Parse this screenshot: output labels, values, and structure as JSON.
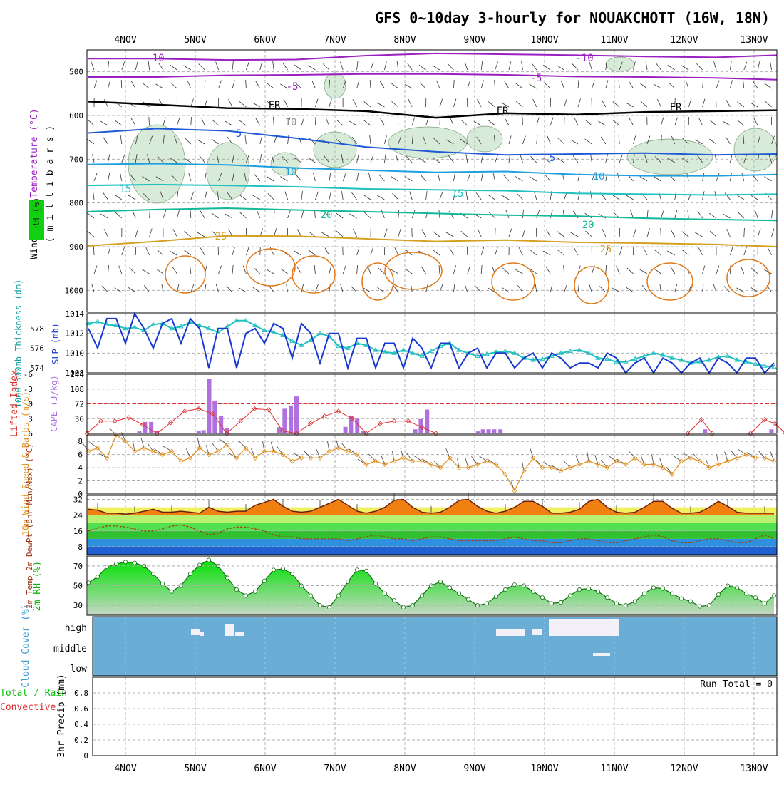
{
  "title": "GFS 0~10day 3-hourly for NOUAKCHOTT (16W, 18N)",
  "dates": [
    "4NOV",
    "5NOV",
    "6NOV",
    "7NOV",
    "8NOV",
    "9NOV",
    "10NOV",
    "11NOV",
    "12NOV",
    "13NOV"
  ],
  "colors": {
    "purple": "#9a1fc0",
    "black": "#000000",
    "blue": "#1e5ad6",
    "skyblue": "#1ea0e0",
    "cyan": "#1ec0c0",
    "teal": "#12b898",
    "gold": "#d4a020",
    "orange": "#e07818",
    "red": "#e03030",
    "cape": "#b070e0",
    "green": "#10d010",
    "cloud": "#6aaed6"
  },
  "chart_data": [
    {
      "type": "line",
      "panel": "upper-air",
      "ylabel_parts": [
        "RH (%)",
        "Temperature (°C)",
        "Wind (m/s)"
      ],
      "ylabel_right": "( m i l l i b a r s )",
      "y_ticks": [
        "500",
        "600",
        "700",
        "800",
        "900",
        "1000"
      ],
      "ylim": [
        450,
        1050
      ],
      "grid": true,
      "contour_labels": [
        "-10",
        "-10",
        "-5",
        "-5",
        "FR",
        "FR",
        "FR",
        "10",
        "5",
        "5",
        "10",
        "10",
        "15",
        "15",
        "20",
        "20",
        "25",
        "25"
      ],
      "series": [
        {
          "label": "-10",
          "days": [
            0,
            1,
            2,
            3,
            4,
            5,
            6,
            7,
            8,
            9,
            10
          ],
          "values": [
            470,
            470,
            473,
            472,
            463,
            458,
            460,
            462,
            465,
            467,
            462
          ]
        },
        {
          "label": "-5",
          "days": [
            0,
            1,
            2,
            3,
            4,
            5,
            6,
            7,
            8,
            9,
            10
          ],
          "values": [
            512,
            512,
            508,
            507,
            505,
            505,
            507,
            511,
            512,
            514,
            518
          ]
        },
        {
          "label": "FR",
          "days": [
            0,
            1,
            2,
            3,
            4,
            5,
            6,
            7,
            8,
            9,
            10
          ],
          "values": [
            568,
            575,
            583,
            585,
            590,
            605,
            595,
            598,
            592,
            590,
            588
          ]
        },
        {
          "label": "5",
          "days": [
            0,
            1,
            2,
            3,
            4,
            5,
            6,
            7,
            8,
            9,
            10
          ],
          "values": [
            640,
            630,
            635,
            652,
            672,
            683,
            690,
            688,
            686,
            690,
            688
          ]
        },
        {
          "label": "10",
          "days": [
            0,
            1,
            2,
            3,
            4,
            5,
            6,
            7,
            8,
            9,
            10
          ],
          "values": [
            712,
            710,
            713,
            720,
            725,
            730,
            728,
            735,
            738,
            738,
            735
          ]
        },
        {
          "label": "15",
          "days": [
            0,
            1,
            2,
            3,
            4,
            5,
            6,
            7,
            8,
            9,
            10
          ],
          "values": [
            760,
            758,
            760,
            763,
            768,
            770,
            772,
            778,
            780,
            782,
            780
          ]
        },
        {
          "label": "20",
          "days": [
            0,
            1,
            2,
            3,
            4,
            5,
            6,
            7,
            8,
            9,
            10
          ],
          "values": [
            820,
            815,
            812,
            816,
            820,
            824,
            828,
            830,
            835,
            838,
            840
          ]
        },
        {
          "label": "25",
          "days": [
            0,
            1,
            2,
            3,
            4,
            5,
            6,
            7,
            8,
            9,
            10
          ],
          "values": [
            898,
            888,
            875,
            876,
            882,
            888,
            885,
            890,
            892,
            895,
            900
          ]
        }
      ]
    },
    {
      "type": "line",
      "panel": "slp-thickness",
      "ylabel_left": "1000-500mb Thickness (dm)",
      "ylabel_right": "SLP (mb)",
      "left_ticks": [
        "578",
        "576",
        "574"
      ],
      "right_ticks": [
        "1014",
        "1012",
        "1010",
        "1008"
      ],
      "series": [
        {
          "name": "SLP (mb)",
          "ylim": [
            1008,
            1014
          ],
          "values": [
            1012.5,
            1010.5,
            1013.5,
            1013.5,
            1011,
            1014,
            1012.5,
            1010.5,
            1013,
            1013.5,
            1011,
            1013.5,
            1012.5,
            1008.5,
            1012.5,
            1012.5,
            1008.5,
            1012,
            1012.5,
            1011,
            1013,
            1012.5,
            1009.5,
            1013,
            1012,
            1009,
            1012,
            1012,
            1008.5,
            1011.5,
            1011.5,
            1008.5,
            1011,
            1011,
            1008.5,
            1011.5,
            1010.5,
            1008.5,
            1011,
            1011,
            1008.5,
            1010,
            1010.5,
            1008.5,
            1010,
            1010,
            1008.5,
            1009.5,
            1010,
            1008.5,
            1010,
            1009.5,
            1008.5,
            1009,
            1009,
            1008.5,
            1010,
            1009.5,
            1008,
            1009,
            1009.5,
            1008,
            1009.5,
            1009,
            1008,
            1009,
            1009.5,
            1008,
            1009.5,
            1009,
            1008,
            1009.5,
            1009.5,
            1008,
            1009
          ]
        },
        {
          "name": "1000-500mb Thickness (dm)",
          "ylim": [
            573.5,
            579.5
          ],
          "values": [
            578.5,
            578.7,
            578.4,
            578.3,
            578,
            578.1,
            577.8,
            578.4,
            578.5,
            578,
            578.2,
            578.6,
            578.3,
            578,
            577.6,
            578.2,
            578.8,
            578.8,
            578.3,
            577.8,
            577.6,
            577.3,
            576.7,
            576.3,
            576.8,
            577.5,
            577.2,
            576.2,
            576,
            576.5,
            576.3,
            575.8,
            575.6,
            575.5,
            575.8,
            575.5,
            575.2,
            575.7,
            576.2,
            576.5,
            575.8,
            575.5,
            575.2,
            575.4,
            575.6,
            575.7,
            575.5,
            575,
            574.8,
            574.9,
            575.2,
            575.5,
            575.7,
            575.8,
            575.5,
            575,
            574.9,
            574.6,
            574.6,
            574.9,
            575.2,
            575.5,
            575.3,
            575,
            574.8,
            574.5,
            574.6,
            574.8,
            575.1,
            575.2,
            574.8,
            574.6,
            574.4,
            574.2,
            574.1
          ]
        }
      ]
    },
    {
      "type": "bar",
      "panel": "stability",
      "ylabel_left": "Lifted Index",
      "ylabel_right": "CAPE (J/kg)",
      "left_ticks": [
        "-6",
        "-3",
        "0",
        "3",
        "6"
      ],
      "right_ticks": [
        "144",
        "108",
        "72",
        "36"
      ],
      "series": [
        {
          "name": "CAPE (J/kg)",
          "ylim": [
            0,
            144
          ],
          "days": [
            0.75,
            0.83,
            0.92,
            1.0,
            1.6,
            1.67,
            1.75,
            1.83,
            1.92,
            2.0,
            2.75,
            2.83,
            2.92,
            3.0,
            3.7,
            3.78,
            3.87,
            3.95,
            4.7,
            4.78,
            4.87,
            5.6,
            5.67,
            5.75,
            5.83,
            5.92,
            8.85,
            9.8
          ],
          "values": [
            5,
            28,
            28,
            5,
            6,
            8,
            132,
            80,
            42,
            12,
            15,
            60,
            68,
            90,
            16,
            42,
            36,
            5,
            10,
            35,
            58,
            5,
            10,
            10,
            10,
            10,
            10,
            10
          ]
        },
        {
          "name": "Lifted Index",
          "ylim": [
            6,
            -6
          ],
          "days": [
            0,
            0.2,
            0.4,
            0.6,
            0.8,
            1.0,
            1.2,
            1.4,
            1.6,
            1.8,
            2.0,
            2.2,
            2.4,
            2.6,
            2.8,
            3.0,
            3.2,
            3.4,
            3.6,
            3.8,
            4.0,
            4.2,
            4.4,
            4.6,
            4.8,
            5.0,
            8.6,
            8.8,
            8.95,
            9.5,
            9.7,
            9.85,
            10.0
          ],
          "values": [
            6,
            3.5,
            3.5,
            2.8,
            4.2,
            6,
            3.8,
            1.5,
            1.0,
            2.0,
            6,
            3.5,
            1.0,
            1.2,
            5.5,
            6,
            4,
            2.5,
            1.5,
            3,
            6,
            4,
            3.5,
            3.5,
            4.8,
            6,
            6,
            3.2,
            6,
            6,
            3.2,
            4,
            6
          ]
        }
      ]
    },
    {
      "type": "line",
      "panel": "wind-10m",
      "ylabel": "10m Wind Speed & Barbs (m/s)",
      "ylim": [
        0,
        9
      ],
      "y_ticks": [
        "8",
        "6",
        "4",
        "2",
        "0"
      ],
      "values": [
        6.5,
        7,
        5.5,
        9,
        8,
        6.5,
        7,
        6.5,
        6,
        6.5,
        5,
        5.5,
        7,
        6,
        6.5,
        7.5,
        5.5,
        7,
        5.5,
        6.5,
        6.5,
        6,
        5,
        5.5,
        5.5,
        5.5,
        6.5,
        7,
        6.5,
        6,
        4.5,
        5,
        4.5,
        5,
        5.5,
        5,
        5,
        4.5,
        4,
        5.5,
        4,
        4,
        4.5,
        5,
        4.5,
        3,
        0.5,
        3.5,
        5.5,
        4,
        4,
        3.5,
        4,
        4.5,
        5,
        4.5,
        4,
        5,
        4.5,
        5.5,
        4.5,
        4.5,
        4,
        3,
        5,
        5.5,
        5,
        4,
        4.5,
        5,
        5.5,
        6,
        5.5,
        5.5,
        5
      ]
    },
    {
      "type": "area",
      "panel": "temperature-2m",
      "ylabel": "2m Temp 2m DewPt (6hr Min/Max) (°C)",
      "ylim": [
        4,
        34
      ],
      "y_ticks": [
        "32",
        "24",
        "16",
        "8"
      ],
      "series": [
        {
          "name": "2m Temp",
          "values": [
            27,
            26.5,
            25,
            25,
            24.5,
            25,
            26,
            27,
            25.5,
            25.5,
            26,
            25.5,
            25,
            28,
            26,
            25.5,
            26,
            26,
            29,
            30.5,
            32,
            28.5,
            26,
            25.5,
            26,
            28,
            30,
            32,
            29,
            26,
            25,
            26,
            28,
            31.5,
            32,
            28,
            25.5,
            25,
            25.5,
            28,
            31.5,
            32,
            28.5,
            26,
            25,
            26,
            28,
            31,
            31,
            28.5,
            25,
            25,
            25.5,
            27,
            31,
            32,
            28,
            25.5,
            25,
            25.5,
            28,
            31,
            31,
            27.5,
            25,
            25,
            25.5,
            28,
            31,
            28.5,
            25.5,
            25,
            25,
            25,
            25
          ]
        },
        {
          "name": "2m DewPt",
          "values": [
            16,
            17.5,
            18.5,
            18.5,
            18,
            17,
            16,
            16,
            17,
            18.5,
            19,
            18,
            16,
            14,
            15,
            17,
            18,
            18,
            17,
            16,
            14,
            13,
            13,
            12,
            12,
            12,
            12,
            12,
            11,
            12,
            13,
            14,
            13,
            12,
            12,
            11,
            12,
            13,
            13,
            12,
            11,
            11,
            11,
            11,
            11,
            12,
            13,
            12,
            11,
            11,
            10,
            10,
            11,
            12,
            12,
            11,
            10,
            10,
            11,
            12,
            13,
            14,
            13,
            11,
            10,
            10,
            11,
            12,
            12,
            11,
            10,
            10,
            12,
            14,
            12
          ]
        }
      ]
    },
    {
      "type": "area",
      "panel": "rh-2m",
      "ylabel": "2m RH (%)",
      "ylim": [
        20,
        80
      ],
      "y_ticks": [
        "70",
        "50",
        "30"
      ],
      "values": [
        53,
        59,
        69,
        72,
        74,
        73,
        70,
        62,
        52,
        44,
        50,
        62,
        71,
        76,
        70,
        58,
        46,
        40,
        44,
        55,
        66,
        67,
        62,
        50,
        40,
        30,
        28,
        40,
        54,
        66,
        65,
        52,
        42,
        35,
        28,
        30,
        40,
        50,
        54,
        48,
        42,
        36,
        30,
        32,
        39,
        46,
        51,
        50,
        44,
        38,
        32,
        33,
        40,
        46,
        47,
        44,
        38,
        32,
        30,
        34,
        42,
        48,
        47,
        42,
        37,
        34,
        29,
        30,
        41,
        50,
        48,
        42,
        38,
        32,
        40
      ]
    },
    {
      "type": "heatmap",
      "panel": "cloud-cover",
      "ylabel": "Cloud Cover (%)",
      "levels": [
        "high",
        "middle",
        "low"
      ],
      "notes": "mostly clear; scattered high cloud patches around 5-6NOV and 9-11NOV"
    },
    {
      "type": "bar",
      "panel": "precipitation",
      "ylabel_parts": [
        "Total / Rain",
        "Convective",
        "3hr Precip (mm)"
      ],
      "ylim": [
        0,
        1
      ],
      "y_ticks": [
        "0.8",
        "0.6",
        "0.4",
        "0.2",
        "0"
      ],
      "annotation": "Run Total = 0",
      "values": []
    }
  ]
}
